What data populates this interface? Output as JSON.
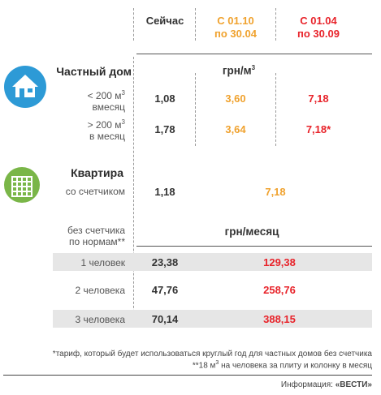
{
  "header": {
    "col_now": "Сейчас",
    "col_period1_line1": "С 01.10",
    "col_period1_line2": "по 30.04",
    "col_period2_line1": "С 01.04",
    "col_period2_line2": "по 30.09"
  },
  "house": {
    "title": "Частный дом",
    "unit_prefix": "грн/м",
    "unit_sup": "3",
    "rows": [
      {
        "label_line1_pre": "< 200 м",
        "label_sup": "3",
        "label_line2": "вмесяц",
        "now": "1,08",
        "p1": "3,60",
        "p2": "7,18"
      },
      {
        "label_line1_pre": "> 200 м",
        "label_sup": "3",
        "label_line2": "в месяц",
        "now": "1,78",
        "p1": "3,64",
        "p2": "7,18*"
      }
    ]
  },
  "flat": {
    "title": "Квартира",
    "row_label": "со счетчиком",
    "now": "1,18",
    "future": "7,18"
  },
  "nometer": {
    "label_line1": "без счетчика",
    "label_line2": "по нормам**",
    "unit": "грн/месяц",
    "rows": [
      {
        "label": "1 человек",
        "now": "23,38",
        "future": "129,38"
      },
      {
        "label": "2 человека",
        "now": "47,76",
        "future": "258,76"
      },
      {
        "label": "3 человека",
        "now": "70,14",
        "future": "388,15"
      }
    ]
  },
  "footnotes": {
    "note1": "*тариф, который будет использоваться круглый год для частных домов без счетчика",
    "note2_pre": "**18 м",
    "note2_sup": "3",
    "note2_post": " на человека за плиту и колонку в месяц",
    "source_prefix": "Информация: ",
    "source_brand": "«ВЕСТИ»"
  },
  "colors": {
    "orange": "#f0a22e",
    "red": "#e8232a",
    "icon_blue": "#2d9ad6",
    "icon_green": "#7ab648",
    "band": "#e6e6e6"
  }
}
